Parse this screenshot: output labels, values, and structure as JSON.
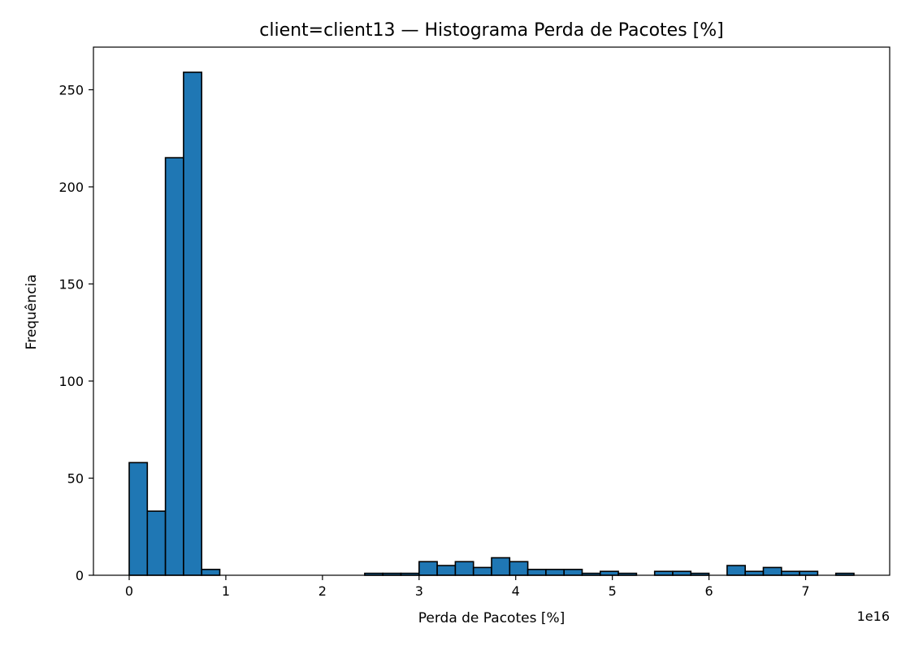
{
  "chart_data": {
    "type": "bar",
    "title": "client=client13 — Histograma Perda de Pacotes [%]",
    "xlabel": "Perda de Pacotes [%]",
    "ylabel": "Frequência",
    "x_offset_label": "1e16",
    "xlim": [
      -0.37,
      7.87
    ],
    "ylim": [
      0,
      271.95
    ],
    "x_ticks": [
      0,
      1,
      2,
      3,
      4,
      5,
      6,
      7
    ],
    "y_ticks": [
      0,
      50,
      100,
      150,
      200,
      250
    ],
    "bin_edges": [
      0,
      0.1875,
      0.375,
      0.5625,
      0.75,
      0.9375,
      1.125,
      1.3125,
      1.5,
      1.6875,
      1.875,
      2.0625,
      2.25,
      2.4375,
      2.625,
      2.8125,
      3.0,
      3.1875,
      3.375,
      3.5625,
      3.75,
      3.9375,
      4.125,
      4.3125,
      4.5,
      4.6875,
      4.875,
      5.0625,
      5.25,
      5.4375,
      5.625,
      5.8125,
      6.0,
      6.1875,
      6.375,
      6.5625,
      6.75,
      6.9375,
      7.125,
      7.3125,
      7.5
    ],
    "values": [
      58,
      33,
      215,
      259,
      3,
      0,
      0,
      0,
      0,
      0,
      0,
      0,
      0,
      1,
      1,
      1,
      7,
      5,
      7,
      4,
      9,
      7,
      3,
      3,
      3,
      1,
      2,
      1,
      0,
      2,
      2,
      1,
      0,
      5,
      2,
      4,
      2,
      2,
      0,
      1
    ],
    "grid": false,
    "colors": {
      "bar_fill": "#1f77b4",
      "bar_edge": "#000000"
    }
  }
}
